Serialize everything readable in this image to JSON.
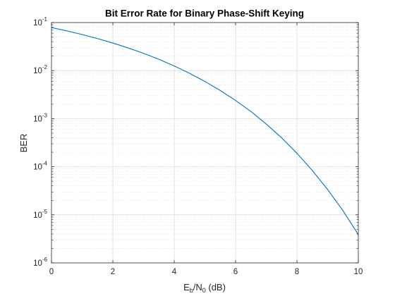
{
  "chart_data": {
    "type": "line",
    "title": "Bit Error Rate for Binary Phase-Shift Keying",
    "xlabel": {
      "E": "E",
      "b": "b",
      "slash": "/N",
      "zero": "0",
      "unit": " (dB)"
    },
    "ylabel": "BER",
    "xlim": [
      0,
      10
    ],
    "ylim": [
      1e-06,
      0.1
    ],
    "yscale": "log",
    "grid": true,
    "minor_grid": true,
    "x_ticks": [
      {
        "value": 0,
        "label": "0"
      },
      {
        "value": 2,
        "label": "2"
      },
      {
        "value": 4,
        "label": "4"
      },
      {
        "value": 6,
        "label": "6"
      },
      {
        "value": 8,
        "label": "8"
      },
      {
        "value": 10,
        "label": "10"
      }
    ],
    "y_ticks": [
      {
        "value": 0.1,
        "base": "10",
        "exp": "-1"
      },
      {
        "value": 0.01,
        "base": "10",
        "exp": "-2"
      },
      {
        "value": 0.001,
        "base": "10",
        "exp": "-3"
      },
      {
        "value": 0.0001,
        "base": "10",
        "exp": "-4"
      },
      {
        "value": 1e-05,
        "base": "10",
        "exp": "-5"
      },
      {
        "value": 1e-06,
        "base": "10",
        "exp": "-6"
      }
    ],
    "series": [
      {
        "color": "#0072BD",
        "x": [
          0,
          0.5,
          1,
          1.5,
          2,
          2.5,
          3,
          3.5,
          4,
          4.5,
          5,
          5.5,
          6,
          6.5,
          7,
          7.5,
          8,
          8.5,
          9,
          9.5,
          10
        ],
        "y": [
          0.0786,
          0.0671,
          0.0563,
          0.0464,
          0.0375,
          0.0296,
          0.0229,
          0.0172,
          0.0125,
          0.00879,
          0.00595,
          0.00386,
          0.00239,
          0.00141,
          0.000773,
          0.0004,
          0.000191,
          8.36e-05,
          3.36e-05,
          1.22e-05,
          3.87e-06
        ]
      }
    ]
  }
}
